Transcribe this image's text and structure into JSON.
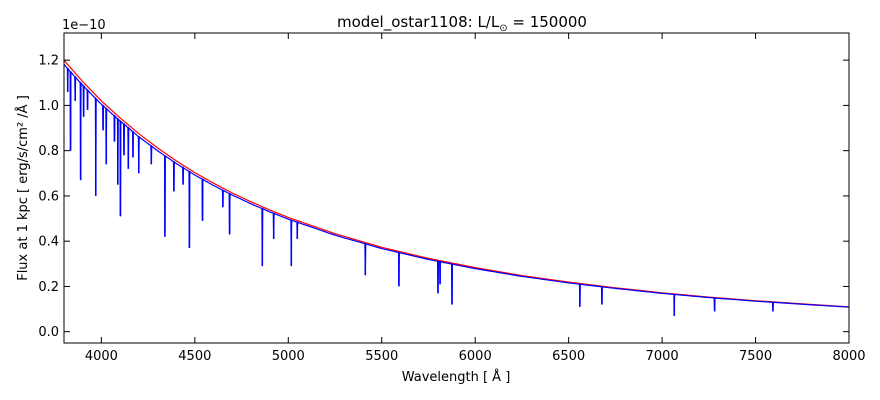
{
  "chart_data": {
    "type": "line",
    "title": "model_ostar1108: L/L",
    "title_sub": "⊙",
    "title_suffix": " = 150000",
    "xlabel": "Wavelength [ Å ]",
    "ylabel": "Flux at 1 kpc [ erg/s/cm² /Å ]",
    "offset_text": "1e−10",
    "xlim": [
      3800,
      8000
    ],
    "ylim": [
      -0.05,
      1.32
    ],
    "y_scale_factor": 1e-10,
    "xticks": [
      4000,
      4500,
      5000,
      5500,
      6000,
      6500,
      7000,
      7500,
      8000
    ],
    "xtick_labels": [
      "4000",
      "4500",
      "5000",
      "5500",
      "6000",
      "6500",
      "7000",
      "7500",
      "8000"
    ],
    "yticks": [
      0.0,
      0.2,
      0.4,
      0.6,
      0.8,
      1.0,
      1.2
    ],
    "ytick_labels": [
      "0.0",
      "0.2",
      "0.4",
      "0.6",
      "0.8",
      "1.0",
      "1.2"
    ],
    "grid": false,
    "series": [
      {
        "color": "#ff0000",
        "x": [
          3800,
          3900,
          4000,
          4100,
          4200,
          4300,
          4400,
          4500,
          4600,
          4700,
          4800,
          4900,
          5000,
          5250,
          5500,
          5750,
          6000,
          6250,
          6500,
          6750,
          7000,
          7250,
          7500,
          7750,
          8000
        ],
        "values": [
          1.2,
          1.105,
          1.02,
          0.945,
          0.875,
          0.812,
          0.755,
          0.703,
          0.656,
          0.613,
          0.574,
          0.538,
          0.505,
          0.433,
          0.373,
          0.324,
          0.283,
          0.248,
          0.219,
          0.194,
          0.172,
          0.153,
          0.137,
          0.123,
          0.11
        ]
      },
      {
        "color": "#0000ff",
        "absorption_lines": [
          {
            "x": 3820,
            "y": 1.06
          },
          {
            "x": 3835,
            "y": 0.8
          },
          {
            "x": 3860,
            "y": 1.02
          },
          {
            "x": 3889,
            "y": 0.67
          },
          {
            "x": 3905,
            "y": 0.95
          },
          {
            "x": 3926,
            "y": 0.98
          },
          {
            "x": 3970,
            "y": 0.6
          },
          {
            "x": 4009,
            "y": 0.89
          },
          {
            "x": 4026,
            "y": 0.74
          },
          {
            "x": 4070,
            "y": 0.84
          },
          {
            "x": 4088,
            "y": 0.65
          },
          {
            "x": 4102,
            "y": 0.51
          },
          {
            "x": 4121,
            "y": 0.78
          },
          {
            "x": 4144,
            "y": 0.72
          },
          {
            "x": 4169,
            "y": 0.77
          },
          {
            "x": 4200,
            "y": 0.7
          },
          {
            "x": 4267,
            "y": 0.74
          },
          {
            "x": 4340,
            "y": 0.42
          },
          {
            "x": 4388,
            "y": 0.62
          },
          {
            "x": 4437,
            "y": 0.65
          },
          {
            "x": 4471,
            "y": 0.37
          },
          {
            "x": 4541,
            "y": 0.49
          },
          {
            "x": 4650,
            "y": 0.55
          },
          {
            "x": 4686,
            "y": 0.43
          },
          {
            "x": 4861,
            "y": 0.29
          },
          {
            "x": 4922,
            "y": 0.41
          },
          {
            "x": 5016,
            "y": 0.29
          },
          {
            "x": 5048,
            "y": 0.41
          },
          {
            "x": 5412,
            "y": 0.25
          },
          {
            "x": 5592,
            "y": 0.2
          },
          {
            "x": 5801,
            "y": 0.17
          },
          {
            "x": 5812,
            "y": 0.21
          },
          {
            "x": 5876,
            "y": 0.12
          },
          {
            "x": 6560,
            "y": 0.11
          },
          {
            "x": 6678,
            "y": 0.12
          },
          {
            "x": 7065,
            "y": 0.07
          },
          {
            "x": 7281,
            "y": 0.09
          },
          {
            "x": 7593,
            "y": 0.09
          }
        ]
      }
    ]
  }
}
